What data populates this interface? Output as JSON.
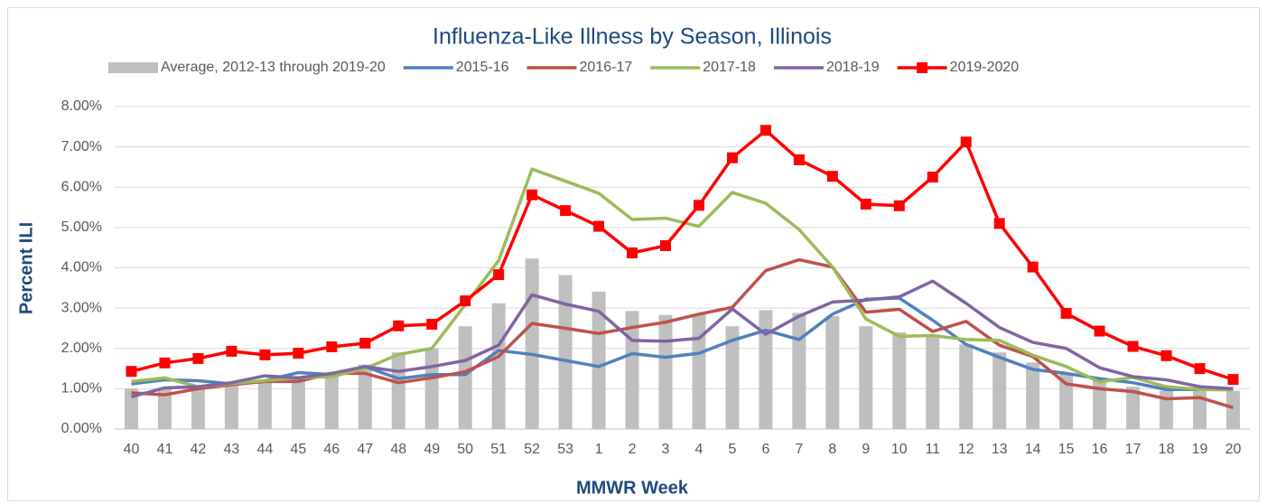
{
  "chart_data": {
    "type": "line",
    "title": "Influenza-Like Illness by Season, Illinois",
    "x_label": "MMWR Week",
    "y_label": "Percent ILI",
    "categories": [
      "40",
      "41",
      "42",
      "43",
      "44",
      "45",
      "46",
      "47",
      "48",
      "49",
      "50",
      "51",
      "52",
      "53",
      "1",
      "2",
      "3",
      "4",
      "5",
      "6",
      "7",
      "8",
      "9",
      "10",
      "11",
      "12",
      "13",
      "14",
      "15",
      "16",
      "17",
      "18",
      "19",
      "20"
    ],
    "ylim": [
      0,
      8
    ],
    "yticks": [
      {
        "value": 0,
        "label": "0.00%"
      },
      {
        "value": 1,
        "label": "1.00%"
      },
      {
        "value": 2,
        "label": "2.00%"
      },
      {
        "value": 3,
        "label": "3.00%"
      },
      {
        "value": 4,
        "label": "4.00%"
      },
      {
        "value": 5,
        "label": "5.00%"
      },
      {
        "value": 6,
        "label": "6.00%"
      },
      {
        "value": 7,
        "label": "7.00%"
      },
      {
        "value": 8,
        "label": "8.00%"
      }
    ],
    "grid": true,
    "legend": "top",
    "series": [
      {
        "name": "Average, 2012-13 through 2019-20",
        "type": "bar",
        "color": "#bfbfbf",
        "values": [
          1.0,
          1.0,
          1.05,
          1.1,
          1.15,
          1.3,
          1.3,
          1.6,
          1.9,
          2.0,
          2.55,
          3.12,
          4.23,
          3.82,
          3.41,
          2.93,
          2.83,
          2.85,
          2.55,
          2.95,
          2.88,
          2.8,
          2.55,
          2.4,
          2.35,
          2.1,
          1.9,
          1.65,
          1.4,
          1.2,
          1.05,
          0.95,
          0.95,
          0.95
        ]
      },
      {
        "name": "2015-16",
        "type": "line",
        "color": "#4f81bd",
        "values": [
          1.12,
          1.22,
          1.2,
          1.12,
          1.2,
          1.4,
          1.35,
          1.55,
          1.25,
          1.35,
          1.35,
          1.95,
          1.85,
          1.7,
          1.55,
          1.87,
          1.78,
          1.88,
          2.2,
          2.45,
          2.22,
          2.85,
          3.22,
          3.25,
          2.7,
          2.1,
          1.78,
          1.48,
          1.38,
          1.25,
          1.15,
          0.98,
          0.98,
          1.0
        ]
      },
      {
        "name": "2016-17",
        "type": "line",
        "color": "#c0504d",
        "values": [
          0.9,
          0.85,
          1.0,
          1.1,
          1.18,
          1.18,
          1.38,
          1.38,
          1.15,
          1.27,
          1.42,
          1.8,
          2.62,
          2.5,
          2.37,
          2.52,
          2.65,
          2.85,
          3.02,
          3.93,
          4.2,
          4.02,
          2.9,
          2.97,
          2.42,
          2.67,
          2.08,
          1.8,
          1.12,
          1.0,
          0.93,
          0.75,
          0.78,
          0.53
        ]
      },
      {
        "name": "2017-18",
        "type": "line",
        "color": "#9bbb59",
        "values": [
          1.18,
          1.27,
          1.05,
          1.13,
          1.2,
          1.27,
          1.3,
          1.5,
          1.85,
          2.0,
          3.08,
          4.18,
          6.45,
          6.15,
          5.85,
          5.2,
          5.23,
          5.03,
          5.87,
          5.6,
          4.95,
          4.02,
          2.73,
          2.3,
          2.32,
          2.22,
          2.2,
          1.83,
          1.55,
          1.17,
          1.28,
          1.05,
          0.98,
          0.97
        ]
      },
      {
        "name": "2018-19",
        "type": "line",
        "color": "#8064a2",
        "values": [
          0.8,
          1.02,
          1.05,
          1.15,
          1.32,
          1.27,
          1.38,
          1.55,
          1.43,
          1.55,
          1.7,
          2.08,
          3.33,
          3.1,
          2.92,
          2.2,
          2.18,
          2.25,
          2.98,
          2.35,
          2.8,
          3.15,
          3.2,
          3.28,
          3.67,
          3.12,
          2.52,
          2.15,
          2.0,
          1.52,
          1.3,
          1.22,
          1.05,
          1.0
        ]
      },
      {
        "name": "2019-2020",
        "type": "line",
        "marker": "square",
        "color": "#ff0000",
        "values": [
          1.43,
          1.64,
          1.75,
          1.93,
          1.84,
          1.88,
          2.04,
          2.13,
          2.56,
          2.6,
          3.18,
          3.83,
          5.81,
          5.42,
          5.03,
          4.37,
          4.55,
          5.55,
          6.73,
          7.41,
          6.68,
          6.27,
          5.58,
          5.54,
          6.25,
          7.12,
          5.1,
          4.02,
          2.87,
          2.43,
          2.05,
          1.82,
          1.5,
          1.23
        ]
      }
    ]
  }
}
